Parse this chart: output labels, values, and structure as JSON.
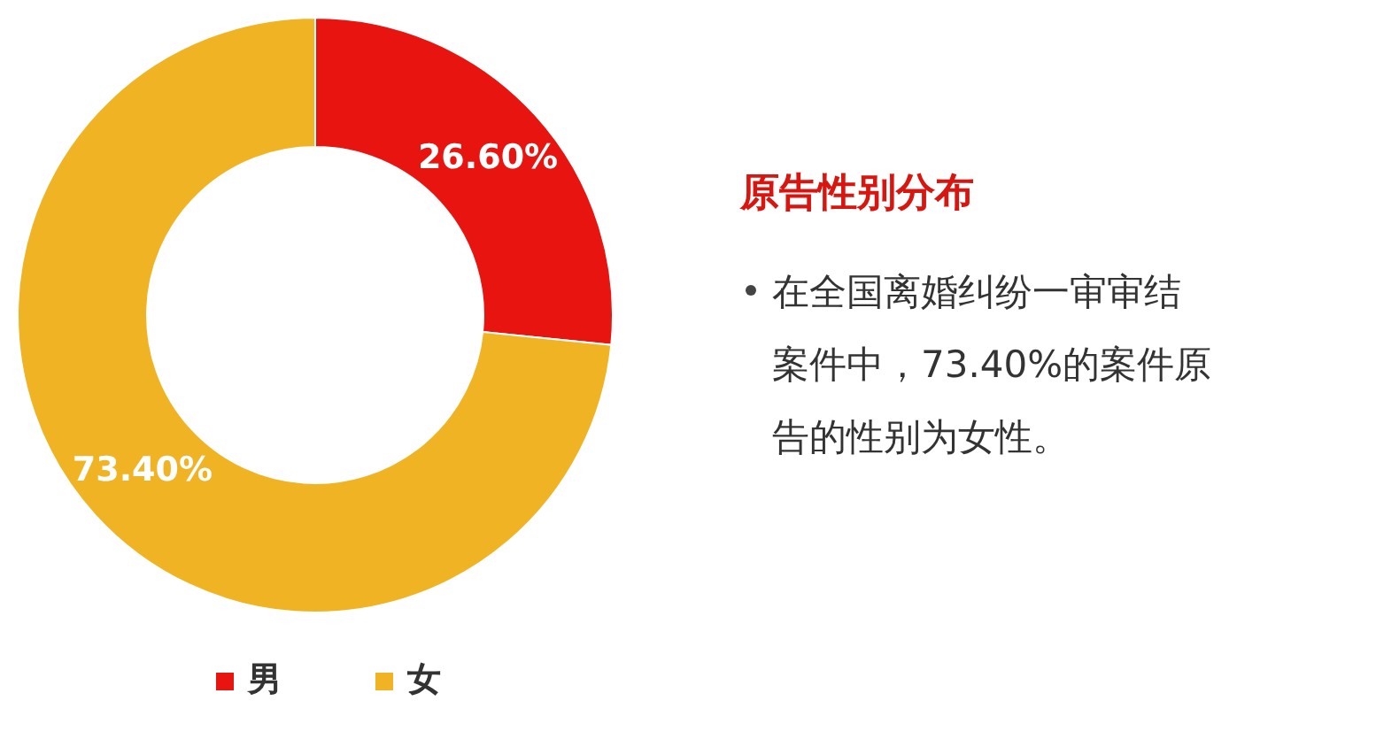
{
  "chart_data": {
    "type": "donut",
    "title": "原告性别分布",
    "categories": [
      "男",
      "女"
    ],
    "values": [
      26.6,
      73.4
    ],
    "colors": [
      "#e8140f",
      "#f0b323"
    ],
    "value_labels": [
      "26.60%",
      "73.40%"
    ],
    "legend": "bottom",
    "annotations": [
      "在全国离婚纠纷一审审结案件中，73.40%的案件原告的性别为女性。"
    ]
  }
}
